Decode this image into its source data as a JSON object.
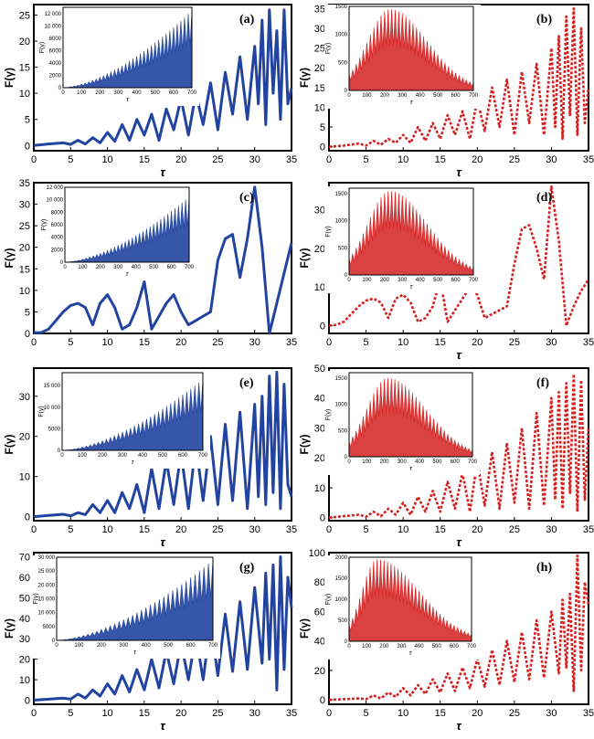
{
  "chart_data": [
    {
      "id": "a",
      "type": "line",
      "panel_label": "(a)",
      "color": "#2244a0",
      "dashed": false,
      "xlabel": "τ",
      "ylabel": "F(γ)",
      "xlim": [
        0,
        35
      ],
      "ylim": [
        -1,
        27
      ],
      "xticks": [
        0,
        5,
        10,
        15,
        20,
        25,
        30,
        35
      ],
      "yticks": [
        0,
        5,
        10,
        15,
        20,
        25
      ],
      "series": [
        {
          "x": [
            0,
            2,
            4,
            5,
            6,
            7,
            8,
            9,
            10,
            11,
            12,
            13,
            14,
            15,
            16,
            17,
            18,
            19,
            20,
            21,
            22,
            23,
            24,
            25,
            26,
            27,
            28,
            29,
            30,
            30.5,
            31,
            31.5,
            32,
            32.5,
            33,
            33.5,
            34,
            34.5,
            35
          ],
          "y": [
            0,
            0.3,
            0.5,
            0.2,
            1,
            0.3,
            1.5,
            0.5,
            2.5,
            0.8,
            4,
            1,
            5,
            2,
            6,
            1,
            7,
            3,
            9,
            2,
            10,
            4,
            12,
            3,
            14,
            6,
            17,
            5,
            19,
            8,
            24,
            4,
            26,
            10,
            22,
            5,
            26,
            8,
            11
          ]
        }
      ],
      "inset": {
        "type": "envelope",
        "shape": "growth",
        "xlim": [
          0,
          700
        ],
        "ylim": [
          0,
          13000
        ],
        "xticks": [
          0,
          100,
          200,
          300,
          400,
          500,
          600,
          700
        ],
        "yticks": [
          0,
          2000,
          4000,
          6000,
          8000,
          10000,
          12000
        ],
        "xlabel": "τ",
        "ylabel": "F(γ)",
        "peak": 12500
      }
    },
    {
      "id": "b",
      "type": "line",
      "panel_label": "(b)",
      "color": "#d42020",
      "dashed": true,
      "xlabel": "τ",
      "ylabel": "F(γ)",
      "xlim": [
        0,
        35
      ],
      "ylim": [
        -1,
        36
      ],
      "xticks": [
        0,
        5,
        10,
        15,
        20,
        25,
        30,
        35
      ],
      "yticks": [
        0,
        5,
        10,
        15,
        20,
        25,
        30,
        35
      ],
      "series": [
        {
          "x": [
            0,
            2,
            4,
            5,
            6,
            7,
            8,
            9,
            10,
            11,
            12,
            13,
            14,
            15,
            16,
            17,
            18,
            19,
            20,
            21,
            22,
            23,
            24,
            25,
            26,
            27,
            28,
            29,
            30,
            30.5,
            31,
            31.5,
            32,
            32.5,
            33,
            33.5,
            34,
            34.5,
            35
          ],
          "y": [
            0,
            0.3,
            0.8,
            0.3,
            1.5,
            0.5,
            2,
            1,
            3,
            1,
            5,
            1.5,
            6,
            2,
            8,
            3,
            9,
            2,
            12,
            4,
            15,
            5,
            17,
            3,
            19,
            6,
            21,
            3,
            25,
            5,
            28,
            2,
            33,
            8,
            35,
            3,
            30,
            6,
            15
          ]
        }
      ],
      "inset": {
        "type": "envelope",
        "shape": "bell",
        "xlim": [
          0,
          700
        ],
        "ylim": [
          0,
          1500
        ],
        "xticks": [
          0,
          100,
          200,
          300,
          400,
          500,
          600,
          700
        ],
        "yticks": [
          0,
          500,
          1000,
          1500
        ],
        "xlabel": "τ",
        "ylabel": "F(γ)",
        "peak": 1450,
        "center": 230
      }
    },
    {
      "id": "c",
      "type": "line",
      "panel_label": "(c)",
      "color": "#2244a0",
      "dashed": false,
      "xlabel": "",
      "ylabel": "F(γ)",
      "xlim": [
        0,
        35
      ],
      "ylim": [
        0,
        35
      ],
      "xticks": [
        0,
        5,
        10,
        15,
        20,
        25,
        30,
        35
      ],
      "yticks": [
        0,
        5,
        10,
        15,
        20,
        25,
        30,
        35
      ],
      "series": [
        {
          "x": [
            0,
            1,
            2,
            3,
            4,
            5,
            6,
            7,
            8,
            9,
            10,
            11,
            12,
            13,
            14,
            15,
            16,
            17,
            18,
            19,
            20,
            21,
            22,
            23,
            24,
            25,
            26,
            27,
            28,
            29,
            30,
            31,
            32,
            33,
            34,
            35
          ],
          "y": [
            0.2,
            0.2,
            1,
            3,
            5,
            6.5,
            7,
            6,
            2,
            7,
            9,
            6,
            1,
            2,
            6,
            12,
            1,
            4,
            7,
            9,
            5,
            2,
            3,
            4,
            5,
            17,
            22,
            23,
            13,
            22,
            34,
            20,
            0,
            7,
            14,
            21
          ]
        }
      ],
      "inset": {
        "type": "envelope",
        "shape": "growth",
        "xlim": [
          0,
          700
        ],
        "ylim": [
          0,
          12000
        ],
        "xticks": [
          0,
          100,
          200,
          300,
          400,
          500,
          600,
          700
        ],
        "yticks": [
          0,
          2000,
          4000,
          6000,
          8000,
          10000,
          12000
        ],
        "xlabel": "τ",
        "ylabel": "F(γ)",
        "peak": 10500
      }
    },
    {
      "id": "d",
      "type": "line",
      "panel_label": "(d)",
      "color": "#d42020",
      "dashed": true,
      "xlabel": "τ",
      "ylabel": "F(γ)",
      "xlim": [
        0,
        35
      ],
      "ylim": [
        -2,
        37
      ],
      "xticks": [
        0,
        5,
        10,
        15,
        20,
        25,
        30,
        35
      ],
      "yticks": [
        0,
        10,
        20,
        30
      ],
      "series": [
        {
          "x": [
            0,
            1,
            2,
            3,
            4,
            5,
            6,
            7,
            8,
            9,
            10,
            11,
            12,
            13,
            14,
            15,
            16,
            17,
            18,
            19,
            20,
            21,
            22,
            23,
            24,
            25,
            26,
            27,
            28,
            29,
            30,
            31,
            32,
            33,
            34,
            35
          ],
          "y": [
            0,
            0.2,
            1,
            3,
            5,
            6.5,
            7,
            6,
            2,
            7,
            8,
            6,
            1,
            2,
            5,
            12,
            1,
            4,
            7,
            10,
            8,
            2,
            3,
            4,
            5,
            16,
            25,
            26,
            20,
            12,
            36,
            22,
            0,
            5,
            9,
            12
          ]
        }
      ],
      "inset": {
        "type": "envelope",
        "shape": "bell",
        "xlim": [
          0,
          700
        ],
        "ylim": [
          0,
          1600
        ],
        "xticks": [
          0,
          100,
          200,
          300,
          400,
          500,
          600,
          700
        ],
        "yticks": [
          0,
          500,
          1000,
          1500
        ],
        "xlabel": "τ",
        "ylabel": "F(γ)",
        "peak": 1550,
        "center": 230
      }
    },
    {
      "id": "e",
      "type": "line",
      "panel_label": "(e)",
      "color": "#2244a0",
      "dashed": false,
      "xlabel": "τ",
      "ylabel": "F(γ)",
      "xlim": [
        0,
        35
      ],
      "ylim": [
        -1,
        37
      ],
      "xticks": [
        0,
        5,
        10,
        15,
        20,
        25,
        30,
        35
      ],
      "yticks": [
        0,
        10,
        20,
        30
      ],
      "series": [
        {
          "x": [
            0,
            2,
            4,
            5,
            6,
            7,
            8,
            9,
            10,
            11,
            12,
            13,
            14,
            15,
            16,
            17,
            18,
            19,
            20,
            21,
            22,
            23,
            24,
            25,
            26,
            27,
            28,
            29,
            30,
            30.5,
            31,
            31.5,
            32,
            32.5,
            33,
            33.5,
            34,
            34.5,
            35
          ],
          "y": [
            0,
            0.3,
            0.6,
            0.2,
            1,
            0.5,
            3,
            1,
            4,
            1,
            6,
            2,
            8,
            1,
            12,
            2,
            14,
            3,
            16,
            2,
            18,
            4,
            20,
            3,
            23,
            4,
            26,
            2,
            28,
            5,
            30,
            3,
            35,
            6,
            36,
            2,
            33,
            8,
            5
          ]
        }
      ],
      "inset": {
        "type": "envelope",
        "shape": "growth",
        "xlim": [
          0,
          700
        ],
        "ylim": [
          0,
          18000
        ],
        "xticks": [
          0,
          100,
          200,
          300,
          400,
          500,
          600,
          700
        ],
        "yticks": [
          0,
          5000,
          10000,
          15000
        ],
        "xlabel": "τ",
        "ylabel": "F(γ)",
        "peak": 16500
      }
    },
    {
      "id": "f",
      "type": "line",
      "panel_label": "(f)",
      "color": "#d42020",
      "dashed": true,
      "xlabel": "τ",
      "ylabel": "F(γ)",
      "xlim": [
        0,
        35
      ],
      "ylim": [
        -1,
        50
      ],
      "xticks": [
        0,
        5,
        10,
        15,
        20,
        25,
        30,
        35
      ],
      "yticks": [
        0,
        10,
        20,
        30,
        40,
        50
      ],
      "series": [
        {
          "x": [
            0,
            2,
            4,
            5,
            6,
            7,
            8,
            9,
            10,
            11,
            12,
            13,
            14,
            15,
            16,
            17,
            18,
            19,
            20,
            21,
            22,
            23,
            24,
            25,
            26,
            27,
            28,
            29,
            30,
            30.5,
            31,
            31.5,
            32,
            32.5,
            33,
            33.5,
            34,
            34.5,
            35
          ],
          "y": [
            0,
            0.5,
            1,
            0.3,
            2,
            0.5,
            3,
            1,
            5,
            1,
            7,
            2,
            9,
            2,
            12,
            3,
            15,
            2,
            19,
            4,
            22,
            3,
            25,
            5,
            30,
            3,
            35,
            4,
            40,
            6,
            42,
            3,
            45,
            8,
            48,
            2,
            46,
            6,
            30
          ]
        }
      ],
      "inset": {
        "type": "envelope",
        "shape": "bell",
        "xlim": [
          0,
          700
        ],
        "ylim": [
          0,
          1600
        ],
        "xticks": [
          0,
          100,
          200,
          300,
          400,
          500,
          600,
          700
        ],
        "yticks": [
          0,
          500,
          1000,
          1500
        ],
        "xlabel": "τ",
        "ylabel": "F(γ)",
        "peak": 1500,
        "center": 220
      }
    },
    {
      "id": "g",
      "type": "line",
      "panel_label": "(g)",
      "color": "#2244a0",
      "dashed": false,
      "xlabel": "τ",
      "ylabel": "F(γ)",
      "xlim": [
        0,
        35
      ],
      "ylim": [
        -2,
        72
      ],
      "xticks": [
        0,
        5,
        10,
        15,
        20,
        25,
        30,
        35
      ],
      "yticks": [
        0,
        10,
        20,
        30,
        40,
        50,
        60,
        70
      ],
      "series": [
        {
          "x": [
            0,
            2,
            4,
            5,
            6,
            7,
            8,
            9,
            10,
            11,
            12,
            13,
            14,
            15,
            16,
            17,
            18,
            19,
            20,
            21,
            22,
            23,
            24,
            25,
            26,
            27,
            28,
            29,
            30,
            31,
            31.5,
            32,
            32.5,
            33,
            33.5,
            34,
            34.5,
            35
          ],
          "y": [
            0,
            0.5,
            1,
            0.5,
            3,
            1,
            5,
            2,
            8,
            3,
            12,
            4,
            15,
            5,
            20,
            6,
            24,
            8,
            28,
            10,
            32,
            10,
            38,
            12,
            42,
            14,
            48,
            15,
            55,
            18,
            62,
            20,
            66,
            5,
            70,
            15,
            60,
            45
          ]
        }
      ],
      "inset": {
        "type": "envelope",
        "shape": "growth",
        "xlim": [
          0,
          700
        ],
        "ylim": [
          0,
          30000
        ],
        "xticks": [
          0,
          100,
          200,
          300,
          400,
          500,
          600,
          700
        ],
        "yticks": [
          0,
          5000,
          10000,
          15000,
          20000,
          25000,
          30000
        ],
        "xlabel": "τ",
        "ylabel": "F(γ)",
        "peak": 29000
      }
    },
    {
      "id": "h",
      "type": "line",
      "panel_label": "(h)",
      "color": "#d42020",
      "dashed": true,
      "xlabel": "τ",
      "ylabel": "F(γ)",
      "xlim": [
        0,
        35
      ],
      "ylim": [
        -3,
        100
      ],
      "xticks": [
        0,
        5,
        10,
        15,
        20,
        25,
        30,
        35
      ],
      "yticks": [
        0,
        20,
        40,
        60,
        80,
        100
      ],
      "series": [
        {
          "x": [
            0,
            2,
            4,
            5,
            6,
            7,
            8,
            9,
            10,
            11,
            12,
            13,
            14,
            15,
            16,
            17,
            18,
            19,
            20,
            21,
            22,
            23,
            24,
            25,
            26,
            27,
            28,
            29,
            30,
            31,
            31.5,
            32,
            32.5,
            33,
            33.5,
            34,
            34.5,
            35
          ],
          "y": [
            0,
            0.5,
            1,
            0.5,
            3,
            1,
            5,
            2,
            8,
            3,
            10,
            4,
            14,
            5,
            18,
            6,
            22,
            8,
            28,
            9,
            34,
            10,
            40,
            12,
            46,
            14,
            54,
            15,
            60,
            18,
            68,
            22,
            72,
            6,
            98,
            20,
            80,
            65
          ]
        }
      ],
      "inset": {
        "type": "envelope",
        "shape": "bell",
        "xlim": [
          0,
          700
        ],
        "ylim": [
          0,
          2000
        ],
        "xticks": [
          0,
          100,
          200,
          300,
          400,
          500,
          600,
          700
        ],
        "yticks": [
          0,
          500,
          1000,
          1500,
          2000
        ],
        "xlabel": "τ",
        "ylabel": "F(γ)",
        "peak": 1950,
        "center": 160
      }
    }
  ]
}
